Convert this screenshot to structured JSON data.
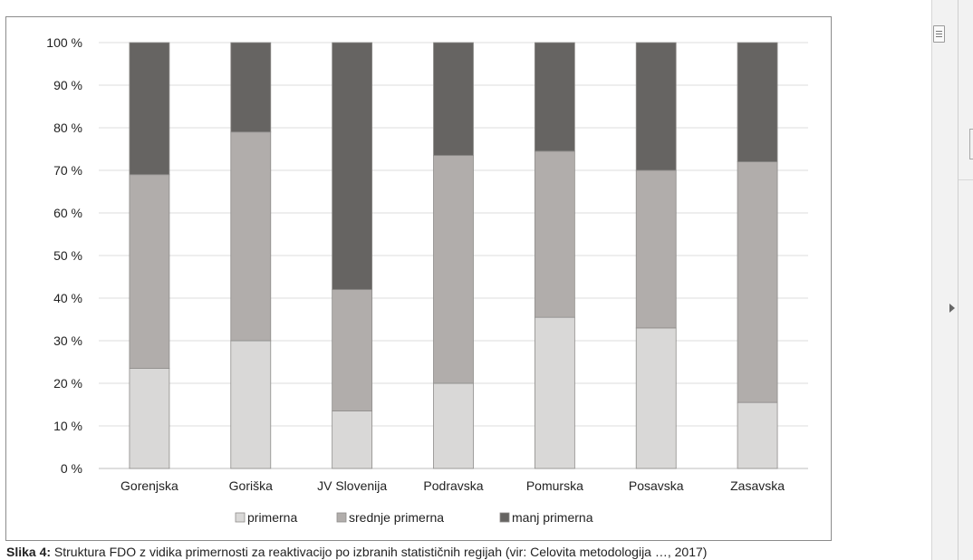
{
  "caption": {
    "prefix": "Slika 4:",
    "text": "Struktura FDO z vidika primernosti za reaktivacijo po izbranih statističnih regijah (vir: Celovita metodologija …, 2017)"
  },
  "chart_data": {
    "type": "bar",
    "stacked": true,
    "title": "",
    "xlabel": "",
    "ylabel": "",
    "ylim": [
      0,
      100
    ],
    "y_ticks": [
      "0 %",
      "10 %",
      "20 %",
      "30 %",
      "40 %",
      "50 %",
      "60 %",
      "70 %",
      "80 %",
      "90 %",
      "100 %"
    ],
    "grid": true,
    "legend_position": "bottom",
    "categories": [
      "Gorenjska",
      "Goriška",
      "JV Slovenija",
      "Podravska",
      "Pomurska",
      "Posavska",
      "Zasavska"
    ],
    "series": [
      {
        "name": "primerna",
        "color": "#d9d8d7",
        "values": [
          23.5,
          30,
          13.5,
          20,
          35.5,
          33,
          15.5
        ]
      },
      {
        "name": "srednje primerna",
        "color": "#b1adab",
        "values": [
          45.5,
          49,
          28.5,
          53.5,
          39,
          37,
          56.5
        ]
      },
      {
        "name": "manj primerna",
        "color": "#666462",
        "values": [
          31,
          21,
          58,
          26.5,
          25.5,
          30,
          28
        ]
      }
    ]
  },
  "viewer": {
    "scroll_handle_icon": "scroll-grip-icon",
    "expand_icon": "chevron-right-icon"
  }
}
